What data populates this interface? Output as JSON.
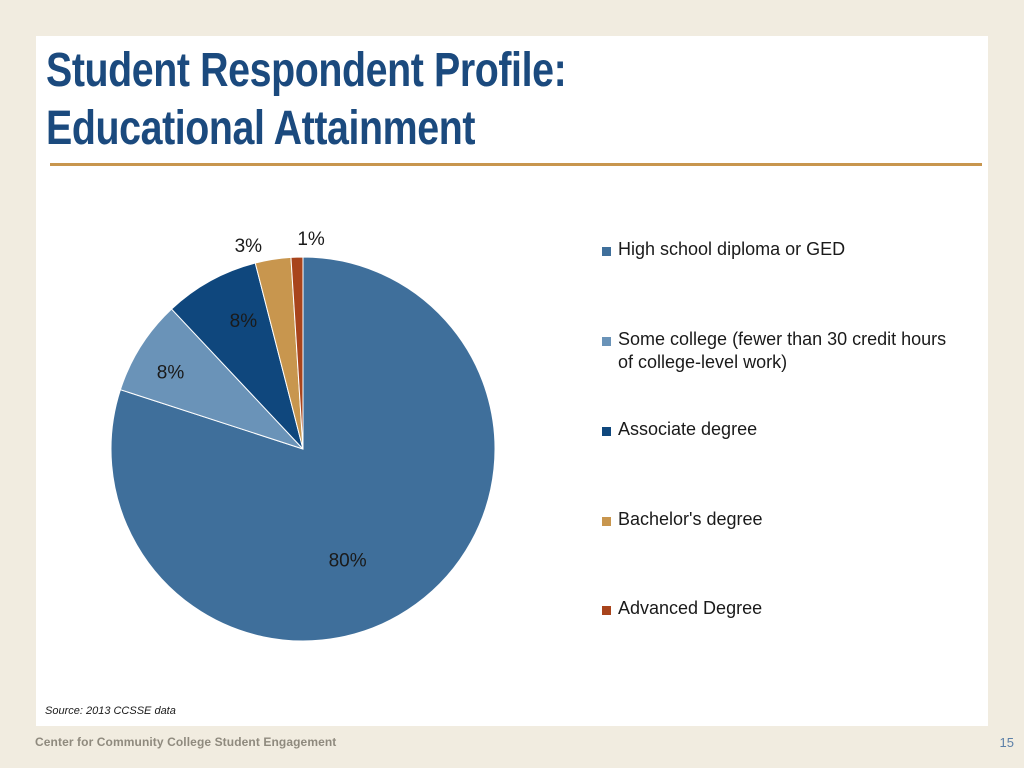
{
  "title_lines": [
    "Student Respondent Profile:",
    "Educational Attainment"
  ],
  "source": "Source: 2013 CCSSE data",
  "footer": {
    "organization": "Center for Community College Student Engagement",
    "page_number": "15"
  },
  "chart_data": {
    "type": "pie",
    "title": "",
    "start_angle_deg": 0,
    "direction": "clockwise",
    "slices": [
      {
        "name": "High school diploma or GED",
        "value": 80,
        "label": "80%",
        "color": "#3f6f9b"
      },
      {
        "name": "Some college (fewer than 30 credit hours of college-level work)",
        "value": 8,
        "label": "8%",
        "color": "#6a93b8"
      },
      {
        "name": "Associate degree",
        "value": 8,
        "label": "8%",
        "color": "#0f477d"
      },
      {
        "name": "Bachelor's degree",
        "value": 3,
        "label": "3%",
        "color": "#c8964e"
      },
      {
        "name": "Advanced Degree",
        "value": 1,
        "label": "1%",
        "color": "#a8441c"
      }
    ],
    "legend": {
      "position": "right",
      "entries": [
        "High school diploma or GED",
        "Some college (fewer than 30 credit hours of college-level work)",
        "Associate degree",
        "Bachelor's degree",
        "Advanced Degree"
      ]
    }
  }
}
